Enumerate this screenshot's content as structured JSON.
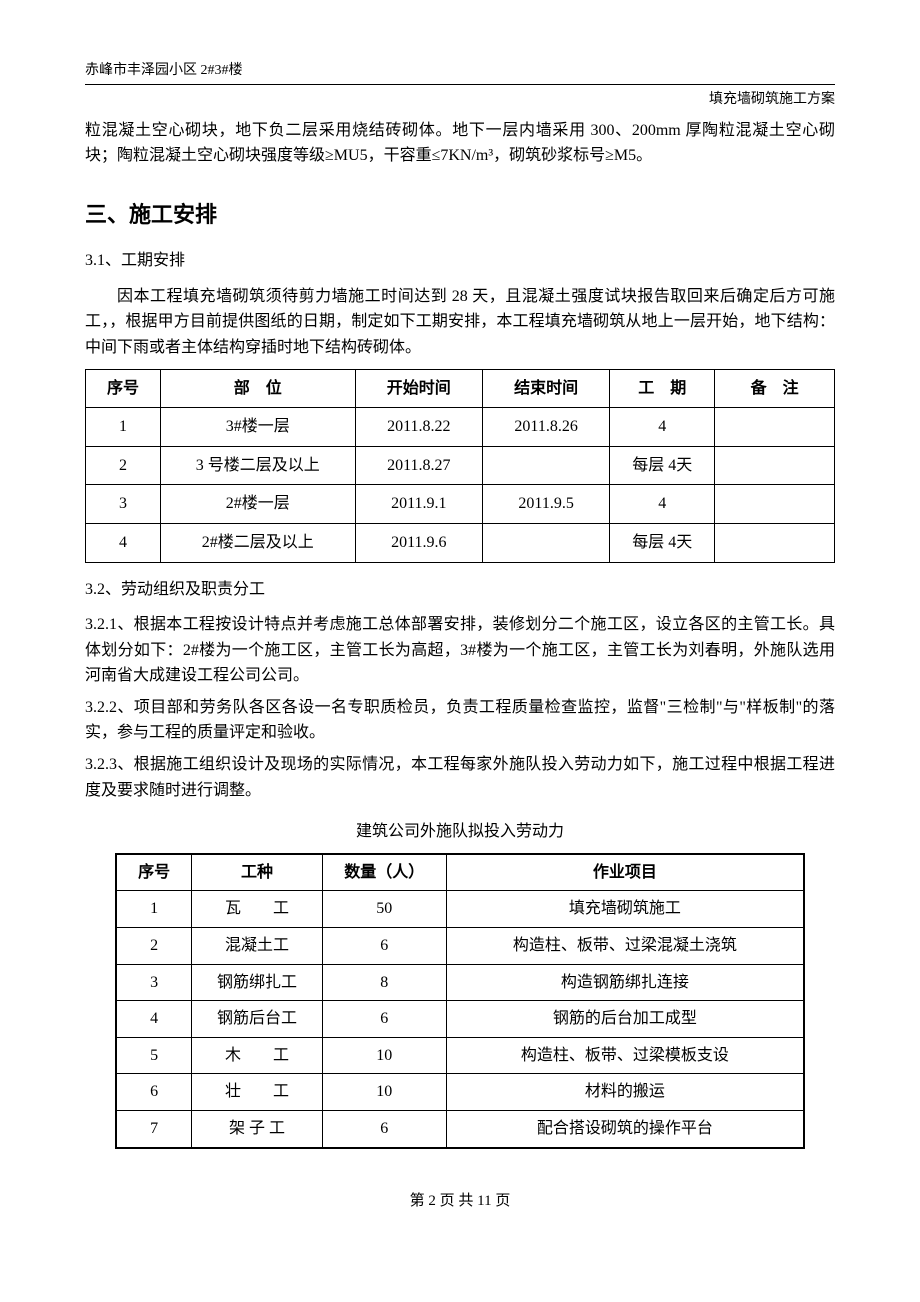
{
  "header": {
    "left": "赤峰市丰泽园小区 2#3#楼",
    "right": "填充墙砌筑施工方案"
  },
  "intro_para": "粒混凝土空心砌块，地下负二层采用烧结砖砌体。地下一层内墙采用 300、200mm 厚陶粒混凝土空心砌块；陶粒混凝土空心砌块强度等级≥MU5，干容重≤7KN/m³，砌筑砂浆标号≥M5。",
  "section3": {
    "title": "三、施工安排",
    "s31": {
      "title": "3.1、工期安排",
      "para": "因本工程填充墙砌筑须待剪力墙施工时间达到 28 天，且混凝土强度试块报告取回来后确定后方可施工，，根据甲方目前提供图纸的日期，制定如下工期安排，本工程填充墙砌筑从地上一层开始，地下结构：中间下雨或者主体结构穿插时地下结构砖砌体。"
    },
    "schedule_table": {
      "headers": [
        "序号",
        "部　位",
        "开始时间",
        "结束时间",
        "工　期",
        "备　注"
      ],
      "col_widths": [
        "10%",
        "26%",
        "17%",
        "17%",
        "14%",
        "16%"
      ],
      "rows": [
        [
          "1",
          "3#楼一层",
          "2011.8.22",
          "2011.8.26",
          "4",
          ""
        ],
        [
          "2",
          "3 号楼二层及以上",
          "2011.8.27",
          "",
          "每层 4天",
          ""
        ],
        [
          "3",
          "2#楼一层",
          "2011.9.1",
          "2011.9.5",
          "4",
          ""
        ],
        [
          "4",
          "2#楼二层及以上",
          "2011.9.6",
          "",
          "每层 4天",
          ""
        ]
      ]
    },
    "s32": {
      "title": "3.2、劳动组织及职责分工",
      "p1": "3.2.1、根据本工程按设计特点并考虑施工总体部署安排，装修划分二个施工区，设立各区的主管工长。具体划分如下：2#楼为一个施工区，主管工长为高超，3#楼为一个施工区，主管工长为刘春明，外施队选用河南省大成建设工程公司公司。",
      "p2": "3.2.2、项目部和劳务队各区各设一名专职质检员，负责工程质量检查监控，监督\"三检制\"与\"样板制\"的落实，参与工程的质量评定和验收。",
      "p3": "3.2.3、根据施工组织设计及现场的实际情况，本工程每家外施队投入劳动力如下，施工过程中根据工程进度及要求随时进行调整。"
    },
    "labor_caption": "建筑公司外施队拟投入劳动力",
    "labor_table": {
      "headers": [
        "序号",
        "工种",
        "数量（人）",
        "作业项目"
      ],
      "col_widths": [
        "11%",
        "19%",
        "18%",
        "52%"
      ],
      "rows": [
        [
          "1",
          "瓦　　工",
          "50",
          "填充墙砌筑施工"
        ],
        [
          "2",
          "混凝土工",
          "6",
          "构造柱、板带、过梁混凝土浇筑"
        ],
        [
          "3",
          "钢筋绑扎工",
          "8",
          "构造钢筋绑扎连接"
        ],
        [
          "4",
          "钢筋后台工",
          "6",
          "钢筋的后台加工成型"
        ],
        [
          "5",
          "木　　工",
          "10",
          "构造柱、板带、过梁模板支设"
        ],
        [
          "6",
          "壮　　工",
          "10",
          "材料的搬运"
        ],
        [
          "7",
          "架 子 工",
          "6",
          "配合搭设砌筑的操作平台"
        ]
      ]
    }
  },
  "footer": "第 2 页 共 11 页"
}
